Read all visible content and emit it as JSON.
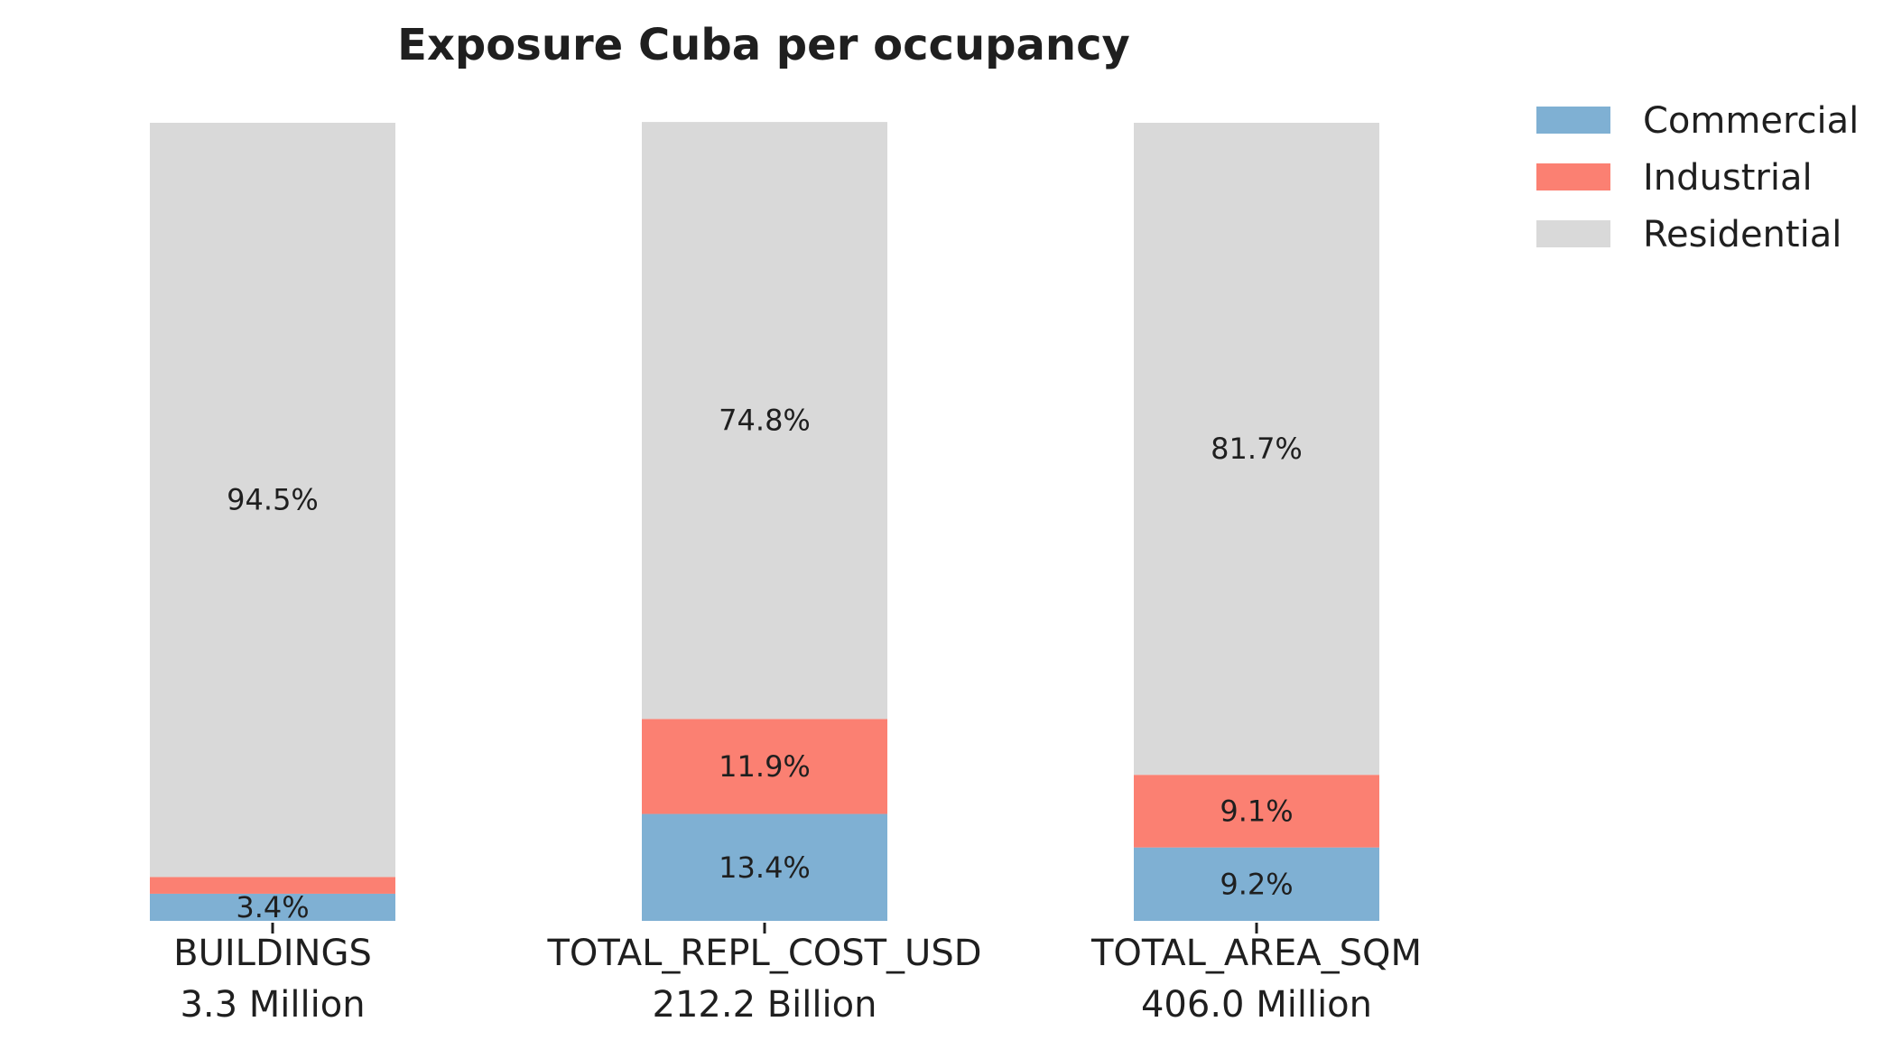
{
  "chart_data": {
    "type": "bar",
    "stacked": true,
    "normalized_percent": true,
    "title": "Exposure Cuba per occupancy",
    "categories": [
      "BUILDINGS",
      "TOTAL_REPL_COST_USD",
      "TOTAL_AREA_SQM"
    ],
    "category_totals": [
      "3.3 Million",
      "212.2 Billion",
      "406.0 Million"
    ],
    "ylim": [
      0,
      100
    ],
    "grid": false,
    "legend_position": "top-right",
    "series": [
      {
        "name": "Commercial",
        "color": "#7fb0d3",
        "values": [
          3.4,
          13.4,
          9.2
        ],
        "labels": [
          "3.4%",
          "13.4%",
          "9.2%"
        ]
      },
      {
        "name": "Industrial",
        "color": "#fb8072",
        "values": [
          2.1,
          11.9,
          9.1
        ],
        "labels": [
          "",
          "11.9%",
          "9.1%"
        ]
      },
      {
        "name": "Residential",
        "color": "#d9d9d9",
        "values": [
          94.5,
          74.8,
          81.7
        ],
        "labels": [
          "94.5%",
          "74.8%",
          "81.7%"
        ]
      }
    ]
  }
}
